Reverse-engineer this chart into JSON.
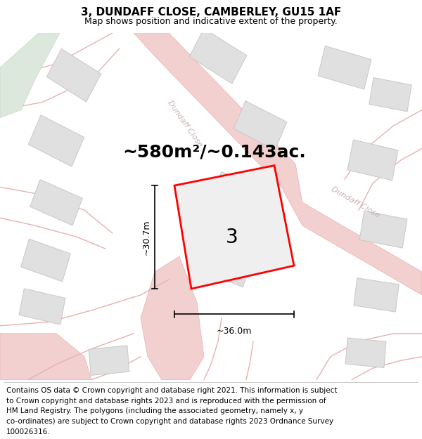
{
  "title": "3, DUNDAFF CLOSE, CAMBERLEY, GU15 1AF",
  "subtitle": "Map shows position and indicative extent of the property.",
  "area_text": "~580m²/~0.143ac.",
  "dimension_width": "~36.0m",
  "dimension_height": "~30.7m",
  "house_number": "3",
  "footer_lines": [
    "Contains OS data © Crown copyright and database right 2021. This information is subject",
    "to Crown copyright and database rights 2023 and is reproduced with the permission of",
    "HM Land Registry. The polygons (including the associated geometry, namely x, y",
    "co-ordinates) are subject to Crown copyright and database rights 2023 Ordnance Survey",
    "100026316."
  ],
  "map_bg": "#f8f8f8",
  "road_fill": "#f2d0d0",
  "road_line": "#e8b0b0",
  "building_fill": "#e0e0e0",
  "building_edge": "#c8c8c8",
  "plot_fill": "#efefef",
  "plot_edge": "#ff0000",
  "green_fill": "#dde8dd",
  "green_edge": "#c8d8c8",
  "title_fontsize": 11,
  "subtitle_fontsize": 9,
  "area_fontsize": 18,
  "footer_fontsize": 7.5,
  "road_label_color": "#c8b0b0",
  "road_label_size": 8
}
